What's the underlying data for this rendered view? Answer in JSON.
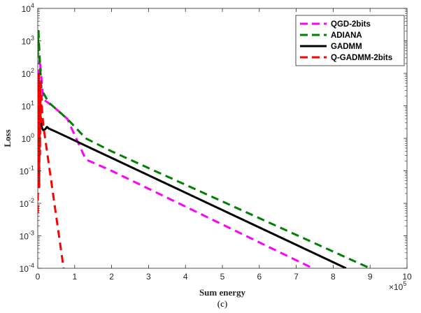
{
  "chart_data": {
    "type": "line",
    "title": "",
    "xlabel": "Sum energy",
    "ylabel": "Loss",
    "caption": "(c)",
    "x_multiplier": "×10^5",
    "x_multiplier_base": "×10",
    "x_multiplier_exp": "5",
    "xlim": [
      0,
      10
    ],
    "ylim_log10": [
      -4,
      4
    ],
    "yscale": "log",
    "grid": false,
    "legend_position": "top-right",
    "x_ticks": [
      "0",
      "1",
      "2",
      "3",
      "4",
      "5",
      "6",
      "7",
      "8",
      "9",
      "10"
    ],
    "y_ticks": [
      {
        "base": "10",
        "exp": "-4"
      },
      {
        "base": "10",
        "exp": "-3"
      },
      {
        "base": "10",
        "exp": "-2"
      },
      {
        "base": "10",
        "exp": "-1"
      },
      {
        "base": "10",
        "exp": "0"
      },
      {
        "base": "10",
        "exp": "1"
      },
      {
        "base": "10",
        "exp": "2"
      },
      {
        "base": "10",
        "exp": "3"
      },
      {
        "base": "10",
        "exp": "4"
      }
    ],
    "series": [
      {
        "name": "QGD-2bits",
        "color": "#ff00ff",
        "style": "dashed",
        "points": [
          [
            0.0,
            1.5
          ],
          [
            0.05,
            2.48
          ],
          [
            0.15,
            1.2
          ],
          [
            0.3,
            1.08
          ],
          [
            0.5,
            0.9
          ],
          [
            0.8,
            0.6
          ],
          [
            1.0,
            0.1
          ],
          [
            1.3,
            -0.65
          ],
          [
            2.0,
            -1.0
          ],
          [
            7.45,
            -4.0
          ]
        ]
      },
      {
        "name": "ADIANA",
        "color": "#008000",
        "style": "dashed",
        "points": [
          [
            0.0,
            2.5
          ],
          [
            0.02,
            3.3
          ],
          [
            0.05,
            2.5
          ],
          [
            0.1,
            1.5
          ],
          [
            0.3,
            1.1
          ],
          [
            0.8,
            0.6
          ],
          [
            1.3,
            0.0
          ],
          [
            2.0,
            -0.4
          ],
          [
            9.0,
            -4.0
          ]
        ]
      },
      {
        "name": "GADMM",
        "color": "#000000",
        "style": "solid",
        "points": [
          [
            0.0,
            1.8
          ],
          [
            0.02,
            1.4
          ],
          [
            0.05,
            0.9
          ],
          [
            0.1,
            0.4
          ],
          [
            0.12,
            0.3
          ],
          [
            0.15,
            0.25
          ],
          [
            0.2,
            0.28
          ],
          [
            0.25,
            0.35
          ],
          [
            0.3,
            0.3
          ],
          [
            0.5,
            0.2
          ],
          [
            8.35,
            -4.0
          ]
        ]
      },
      {
        "name": "Q-GADMM-2bits",
        "color": "#ff0000",
        "style": "dashed",
        "points": [
          [
            0.0,
            -2.3
          ],
          [
            0.01,
            1.5
          ],
          [
            0.02,
            -0.8
          ],
          [
            0.03,
            2.0
          ],
          [
            0.04,
            -1.5
          ],
          [
            0.05,
            1.2
          ],
          [
            0.06,
            -0.5
          ],
          [
            0.07,
            1.7
          ],
          [
            0.08,
            0.5
          ],
          [
            0.1,
            1.3
          ],
          [
            0.12,
            0.8
          ],
          [
            0.15,
            0.4
          ],
          [
            0.2,
            0.0
          ],
          [
            0.7,
            -4.0
          ]
        ]
      }
    ]
  }
}
